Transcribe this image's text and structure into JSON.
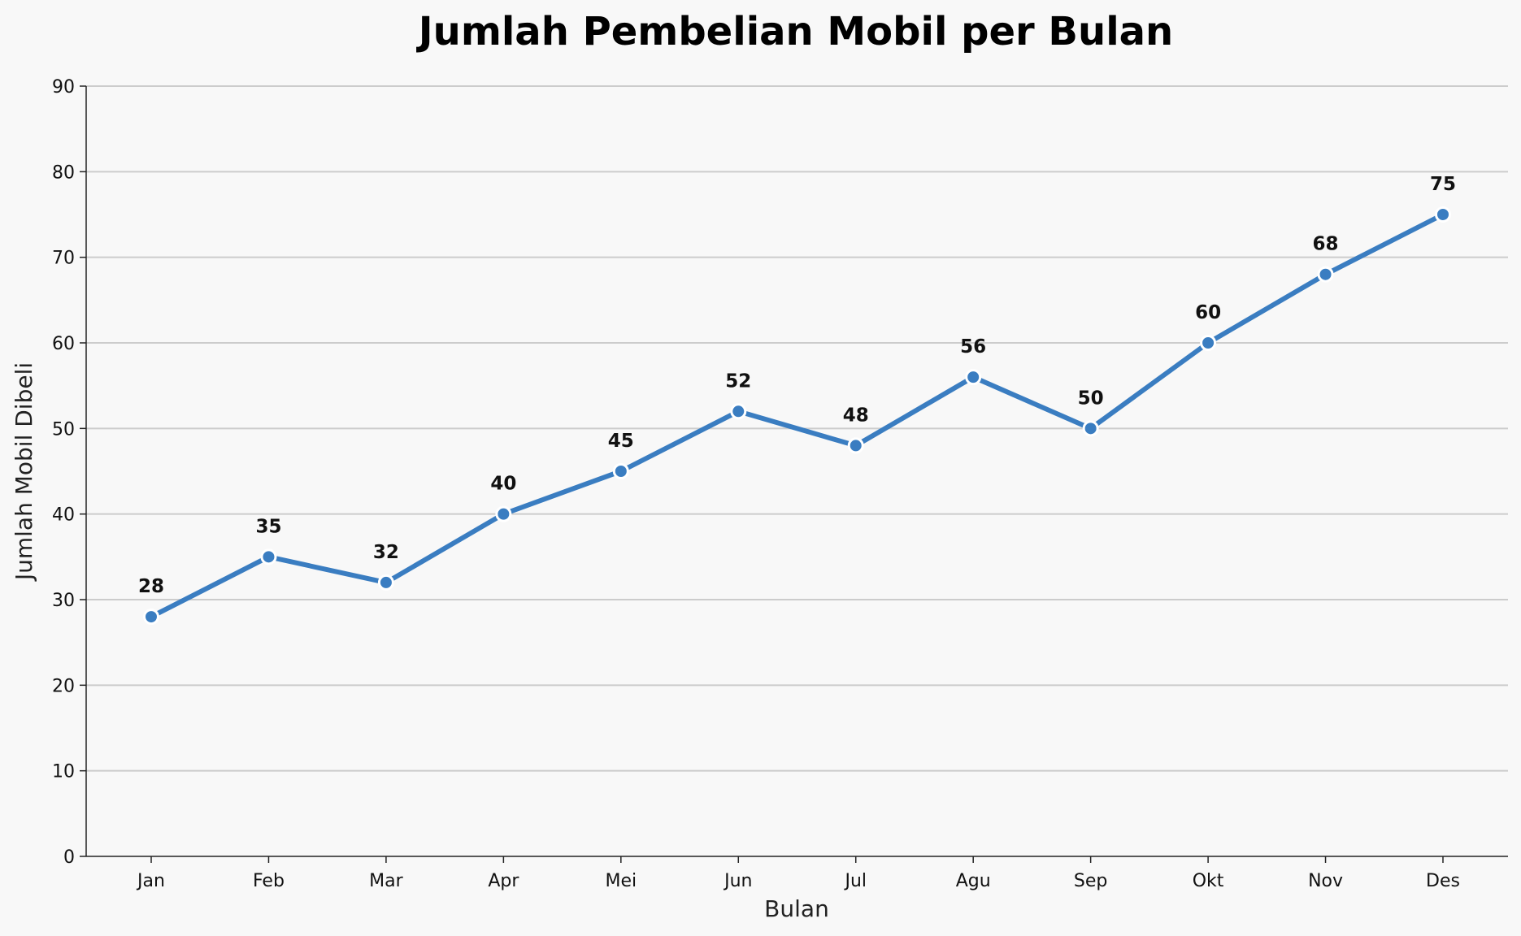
{
  "chart_data": {
    "type": "line",
    "title": "Jumlah Pembelian Mobil per Bulan",
    "xlabel": "Bulan",
    "ylabel": "Jumlah Mobil Dibeli",
    "categories": [
      "Jan",
      "Feb",
      "Mar",
      "Apr",
      "Mei",
      "Jun",
      "Jul",
      "Agu",
      "Sep",
      "Okt",
      "Nov",
      "Des"
    ],
    "series": [
      {
        "values": [
          28,
          35,
          32,
          40,
          45,
          52,
          48,
          56,
          50,
          60,
          68,
          75
        ],
        "color": "#3a7dc1"
      }
    ],
    "ylim": [
      0,
      90
    ],
    "yticks": [
      0,
      10,
      20,
      30,
      40,
      50,
      60,
      70,
      80,
      90
    ],
    "grid": "horizontal",
    "data_labels": true,
    "background": "#f8f8f8"
  }
}
